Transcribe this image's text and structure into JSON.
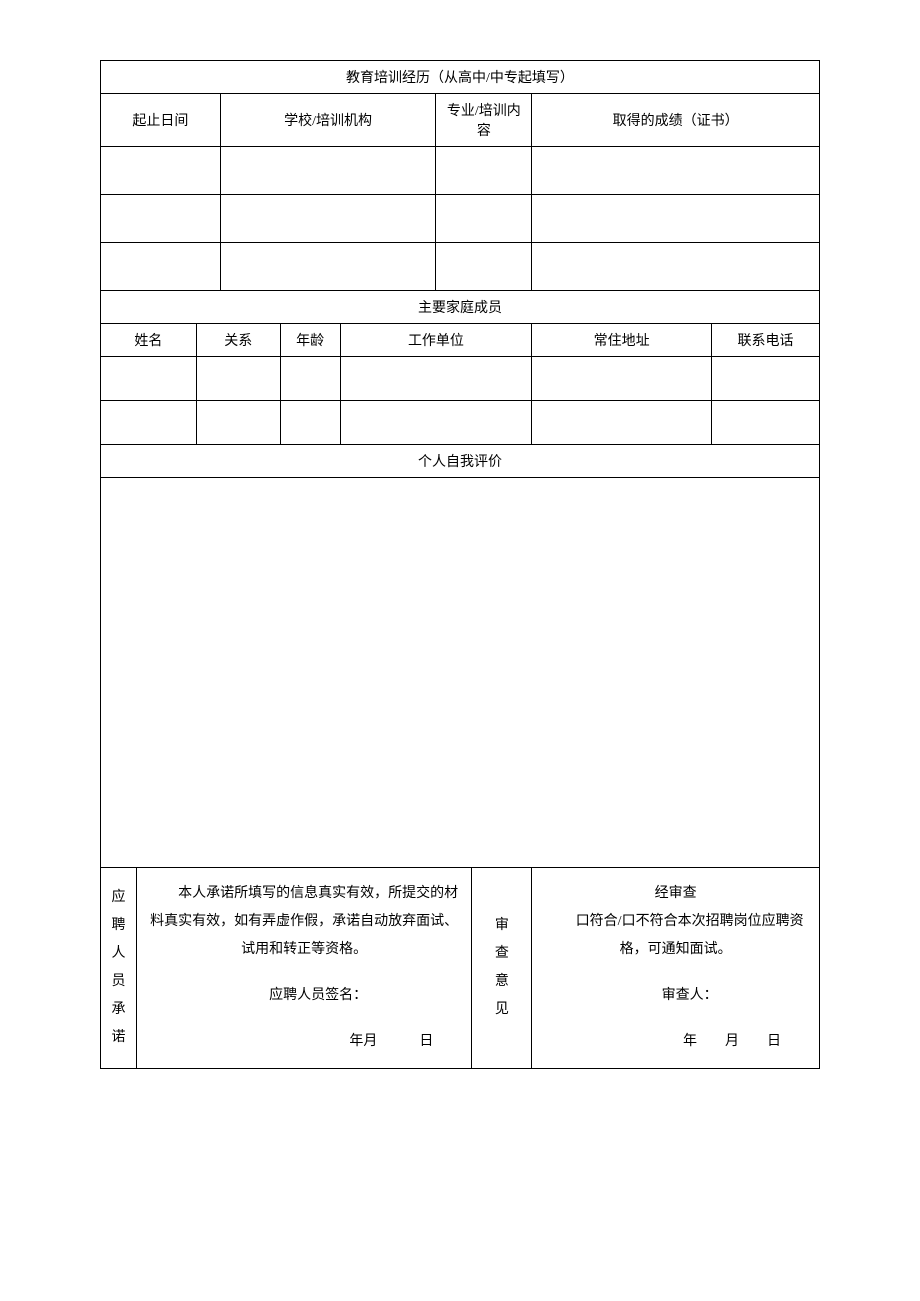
{
  "education": {
    "title": "教育培训经历（从高中/中专起填写）",
    "headers": {
      "period": "起止日间",
      "school": "学校/培训机构",
      "major": "专业/培训内容",
      "cert": "取得的成绩（证书）"
    },
    "rows": [
      {
        "period": "",
        "school": "",
        "major": "",
        "cert": ""
      },
      {
        "period": "",
        "school": "",
        "major": "",
        "cert": ""
      },
      {
        "period": "",
        "school": "",
        "major": "",
        "cert": ""
      }
    ]
  },
  "family": {
    "title": "主要家庭成员",
    "headers": {
      "name": "姓名",
      "relation": "关系",
      "age": "年龄",
      "workplace": "工作单位",
      "address": "常住地址",
      "phone": "联系电话"
    },
    "rows": [
      {
        "name": "",
        "relation": "",
        "age": "",
        "workplace": "",
        "address": "",
        "phone": ""
      },
      {
        "name": "",
        "relation": "",
        "age": "",
        "workplace": "",
        "address": "",
        "phone": ""
      }
    ]
  },
  "selfEval": {
    "title": "个人自我评价",
    "content": ""
  },
  "promise": {
    "label": "应聘人员承诺",
    "text1": "本人承诺所填写的信息真实有效，所提交的材料真实有效，如有弄虚作假，承诺自动放弃面试、试用和转正等资格。",
    "signLabel": "应聘人员签名：",
    "dateLabel": "年月   日"
  },
  "review": {
    "label": "审查意见",
    "line1": "经审查",
    "line2": "口符合/口不符合本次招聘岗位应聘资格，可通知面试。",
    "reviewer": "审查人：",
    "dateLabel": "年  月  日"
  }
}
